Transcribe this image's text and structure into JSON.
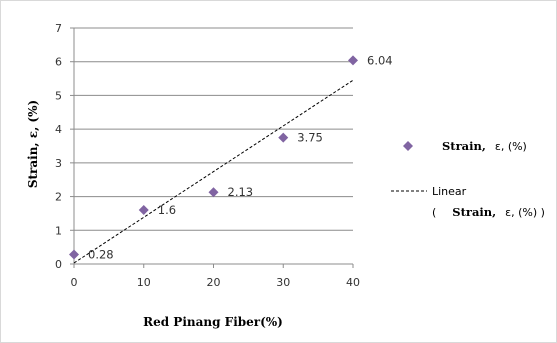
{
  "chart_data": {
    "type": "scatter",
    "title": "",
    "xlabel": "Red Pinang Fiber(%)",
    "ylabel": "Strain, ε, (%)",
    "xlim": [
      0,
      40
    ],
    "ylim": [
      0,
      7
    ],
    "xticks": [
      0,
      10,
      20,
      30,
      40
    ],
    "yticks": [
      0,
      1,
      2,
      3,
      4,
      5,
      6,
      7
    ],
    "grid": "horizontal",
    "legend_position": "right",
    "series": [
      {
        "name": "Strain, ε, (%)",
        "marker": "diamond",
        "color": "#8064a2",
        "points": [
          {
            "x": 0,
            "y": 0.28,
            "label": "0.28"
          },
          {
            "x": 10,
            "y": 1.6,
            "label": "1.6"
          },
          {
            "x": 20,
            "y": 2.13,
            "label": "2.13"
          },
          {
            "x": 30,
            "y": 3.75,
            "label": "3.75"
          },
          {
            "x": 40,
            "y": 6.04,
            "label": "6.04"
          }
        ]
      }
    ],
    "trendline": {
      "type": "linear",
      "style": "dashed",
      "color": "#000000",
      "from": {
        "x": 0,
        "y": 0.03
      },
      "to": {
        "x": 40,
        "y": 5.45
      }
    },
    "legend": {
      "series_bold": "Strain,",
      "series_rest": "ε, (%)",
      "trend_line1": "Linear",
      "trend_line2_open": "(",
      "trend_line2_bold": "Strain,",
      "trend_line2_rest": "ε, (%) )"
    }
  }
}
